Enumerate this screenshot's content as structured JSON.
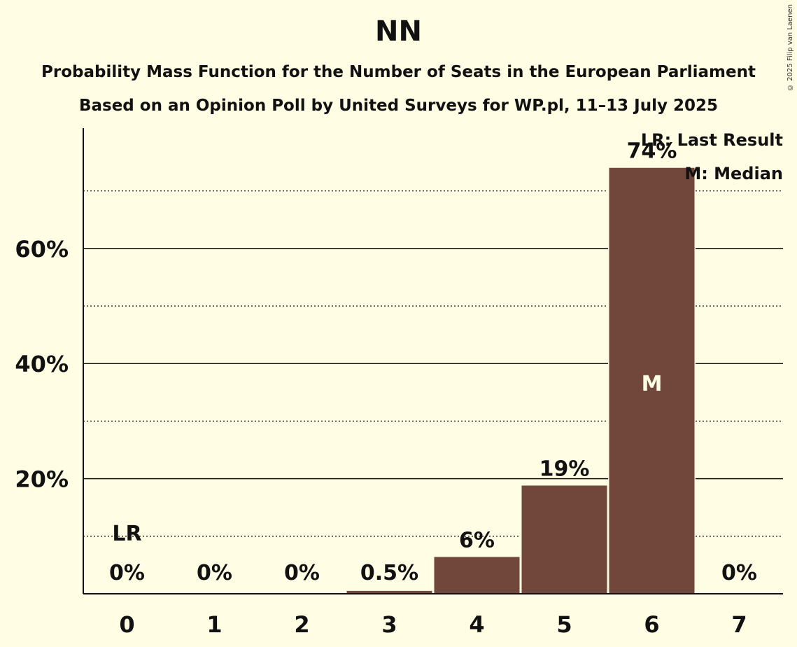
{
  "header": {
    "title": "NN",
    "subtitle1": "Probability Mass Function for the Number of Seats in the European Parliament",
    "subtitle2": "Based on an Opinion Poll by United Surveys for WP.pl, 11–13 July 2025",
    "copyright": "© 2025 Filip van Laenen"
  },
  "legend": {
    "last_result": "LR: Last Result",
    "median": "M: Median"
  },
  "colors": {
    "background": "#fffde4",
    "bar": "#70473a"
  },
  "chart_data": {
    "type": "bar",
    "categories": [
      "0",
      "1",
      "2",
      "3",
      "4",
      "5",
      "6",
      "7"
    ],
    "values": [
      0,
      0,
      0,
      0.5,
      6.4,
      18.8,
      74.0,
      0
    ],
    "value_labels": [
      "0%",
      "0%",
      "0%",
      "0.5%",
      "6%",
      "19%",
      "74%",
      "0%"
    ],
    "ylim": [
      0,
      81
    ],
    "yticks": [
      20,
      40,
      60
    ],
    "ytick_labels": [
      "20%",
      "40%",
      "60%"
    ],
    "ygrid_dotted": [
      10,
      30,
      50,
      70
    ],
    "last_result_index": 0,
    "last_result_label": "LR",
    "median_index": 6,
    "median_label": "M"
  }
}
